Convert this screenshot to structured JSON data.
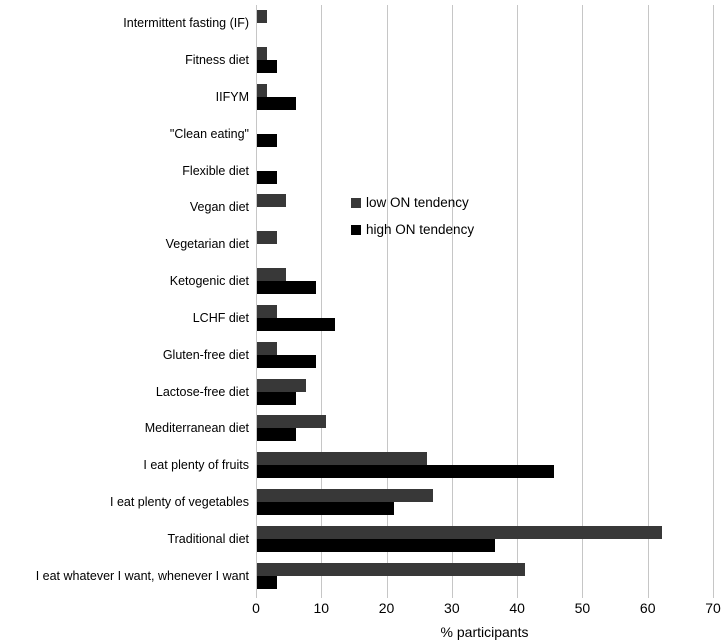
{
  "chart_data": {
    "type": "bar",
    "orientation": "horizontal",
    "title": "",
    "xlabel": "% participants",
    "ylabel": "",
    "xlim": [
      0,
      70
    ],
    "x_ticks": [
      0,
      10,
      20,
      30,
      40,
      50,
      60,
      70
    ],
    "grid": "vertical",
    "gridline_color": "#c6c6c6",
    "legend_position": "center-right-inside",
    "categories": [
      "Intermittent fasting (IF)",
      "Fitness diet",
      "IIFYM",
      "\"Clean eating\"",
      "Flexible diet",
      "Vegan diet",
      "Vegetarian diet",
      "Ketogenic diet",
      "LCHF diet",
      "Gluten-free diet",
      "Lactose-free diet",
      "Mediterranean diet",
      "I eat plenty of fruits",
      "I eat plenty of vegetables",
      "Traditional diet",
      "I eat whatever I want, whenever I want"
    ],
    "series": [
      {
        "name": "low ON tendency",
        "color": "#383838",
        "values": [
          1.5,
          1.5,
          1.5,
          0,
          0,
          4.5,
          3,
          4.5,
          3,
          3,
          7.5,
          10.5,
          26,
          27,
          62,
          41
        ]
      },
      {
        "name": "high ON tendency",
        "color": "#000000",
        "values": [
          0,
          3,
          6,
          3,
          3,
          0,
          0,
          9,
          12,
          9,
          6,
          6,
          45.5,
          21,
          36.5,
          3
        ]
      }
    ]
  }
}
